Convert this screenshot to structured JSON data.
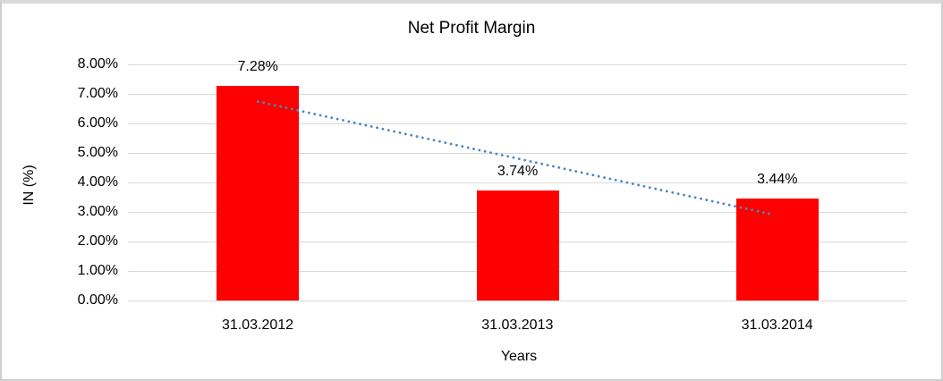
{
  "chart_data": {
    "type": "bar",
    "title": "Net Profit Margin",
    "xlabel": "Years",
    "ylabel": "IN (%)",
    "categories": [
      "31.03.2012",
      "31.03.2013",
      "31.03.2014"
    ],
    "values": [
      7.28,
      3.74,
      3.44
    ],
    "value_labels": [
      "7.28%",
      "3.74%",
      "3.44%"
    ],
    "ylim": [
      0,
      8
    ],
    "ytick_labels": [
      "0.00%",
      "1.00%",
      "2.00%",
      "3.00%",
      "4.00%",
      "5.00%",
      "6.00%",
      "7.00%",
      "8.00%"
    ],
    "grid": true,
    "legend": "none",
    "bar_color": "#FF0000",
    "gridline_color": "#D9D9D9",
    "trendline": {
      "type": "linear",
      "style": "dotted",
      "color": "#4C86C4",
      "start_value": 6.74,
      "end_value": 2.9
    }
  }
}
